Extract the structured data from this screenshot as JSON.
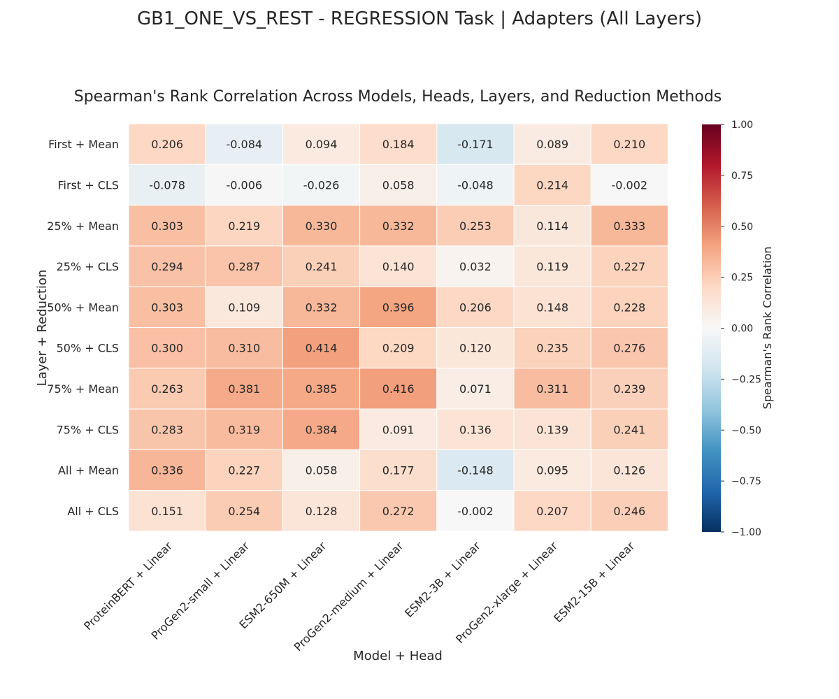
{
  "suptitle": "GB1_ONE_VS_REST - REGRESSION Task | Adapters (All Layers)",
  "chart_data": {
    "type": "heatmap",
    "title": "Spearman's Rank Correlation Across Models, Heads, Layers, and Reduction Methods",
    "xlabel": "Model + Head",
    "ylabel": "Layer + Reduction",
    "x_categories": [
      "ProteinBERT + Linear",
      "ProGen2-small + Linear",
      "ESM2-650M + Linear",
      "ProGen2-medium + Linear",
      "ESM2-3B + Linear",
      "ProGen2-xlarge + Linear",
      "ESM2-15B + Linear"
    ],
    "y_categories": [
      "First + Mean",
      "First + CLS",
      "25% + Mean",
      "25% + CLS",
      "50% + Mean",
      "50% + CLS",
      "75% + Mean",
      "75% + CLS",
      "All + Mean",
      "All + CLS"
    ],
    "values": [
      [
        0.206,
        -0.084,
        0.094,
        0.184,
        -0.171,
        0.089,
        0.21
      ],
      [
        -0.078,
        -0.006,
        -0.026,
        0.058,
        -0.048,
        0.214,
        -0.002
      ],
      [
        0.303,
        0.219,
        0.33,
        0.332,
        0.253,
        0.114,
        0.333
      ],
      [
        0.294,
        0.287,
        0.241,
        0.14,
        0.032,
        0.119,
        0.227
      ],
      [
        0.303,
        0.109,
        0.332,
        0.396,
        0.206,
        0.148,
        0.228
      ],
      [
        0.3,
        0.31,
        0.414,
        0.209,
        0.12,
        0.235,
        0.276
      ],
      [
        0.263,
        0.381,
        0.385,
        0.416,
        0.071,
        0.311,
        0.239
      ],
      [
        0.283,
        0.319,
        0.384,
        0.091,
        0.136,
        0.139,
        0.241
      ],
      [
        0.336,
        0.227,
        0.058,
        0.177,
        -0.148,
        0.095,
        0.126
      ],
      [
        0.151,
        0.254,
        0.128,
        0.272,
        -0.002,
        0.207,
        0.246
      ]
    ],
    "value_labels": [
      [
        "0.206",
        "-0.084",
        "0.094",
        "0.184",
        "-0.171",
        "0.089",
        "0.210"
      ],
      [
        "-0.078",
        "-0.006",
        "-0.026",
        "0.058",
        "-0.048",
        "0.214",
        "-0.002"
      ],
      [
        "0.303",
        "0.219",
        "0.330",
        "0.332",
        "0.253",
        "0.114",
        "0.333"
      ],
      [
        "0.294",
        "0.287",
        "0.241",
        "0.140",
        "0.032",
        "0.119",
        "0.227"
      ],
      [
        "0.303",
        "0.109",
        "0.332",
        "0.396",
        "0.206",
        "0.148",
        "0.228"
      ],
      [
        "0.300",
        "0.310",
        "0.414",
        "0.209",
        "0.120",
        "0.235",
        "0.276"
      ],
      [
        "0.263",
        "0.381",
        "0.385",
        "0.416",
        "0.071",
        "0.311",
        "0.239"
      ],
      [
        "0.283",
        "0.319",
        "0.384",
        "0.091",
        "0.136",
        "0.139",
        "0.241"
      ],
      [
        "0.336",
        "0.227",
        "0.058",
        "0.177",
        "-0.148",
        "0.095",
        "0.126"
      ],
      [
        "0.151",
        "0.254",
        "0.128",
        "0.272",
        "-0.002",
        "0.207",
        "0.246"
      ]
    ],
    "vmin": -1.0,
    "vmax": 1.0,
    "colormap": "RdBu_r",
    "colormap_stops": [
      "#053061",
      "#2166ac",
      "#4393c3",
      "#92c5de",
      "#d1e5f0",
      "#f7f7f7",
      "#fddbc7",
      "#f4a582",
      "#d6604d",
      "#b2182b",
      "#67001f"
    ],
    "colorbar_label": "Spearman's Rank Correlation",
    "colorbar_ticks": [
      1.0,
      0.75,
      0.5,
      0.25,
      0.0,
      -0.25,
      -0.5,
      -0.75,
      -1.0
    ],
    "colorbar_tick_labels": [
      "1.00",
      "0.75",
      "0.50",
      "0.25",
      "0.00",
      "−0.25",
      "−0.50",
      "−0.75",
      "−1.00"
    ],
    "grid": false,
    "legend": "colorbar-right"
  }
}
